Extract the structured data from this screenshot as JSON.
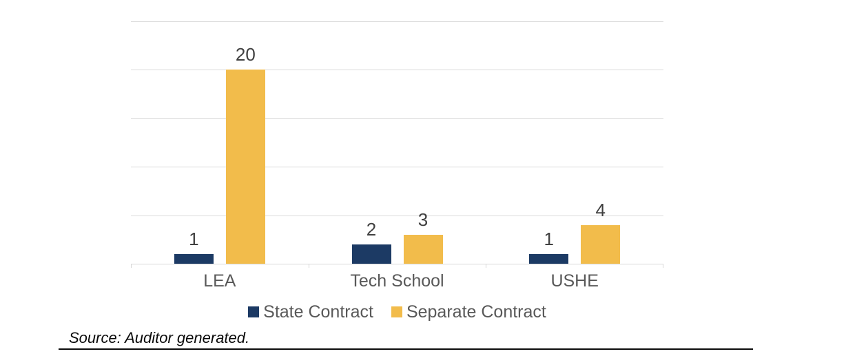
{
  "chart_data": {
    "type": "bar",
    "title": "",
    "xlabel": "",
    "ylabel": "",
    "categories": [
      "LEA",
      "Tech School",
      "USHE"
    ],
    "series": [
      {
        "name": "State Contract",
        "color": "#1C3A64",
        "values": [
          1,
          2,
          1
        ]
      },
      {
        "name": "Separate Contract",
        "color": "#F2BC4B",
        "values": [
          20,
          3,
          4
        ]
      }
    ],
    "ylim": [
      0,
      25
    ],
    "gridline_step": 5,
    "grid": true,
    "y_axis_labels_visible": false,
    "legend_position": "bottom",
    "data_labels": true
  },
  "source_note": "Source: Auditor generated.",
  "colors": {
    "gridline": "#D9D9D9",
    "axis": "#D6D6D6",
    "value_label": "#404040",
    "category_label": "#595959",
    "legend_text": "#595959",
    "source_text": "#0a0a0a"
  }
}
